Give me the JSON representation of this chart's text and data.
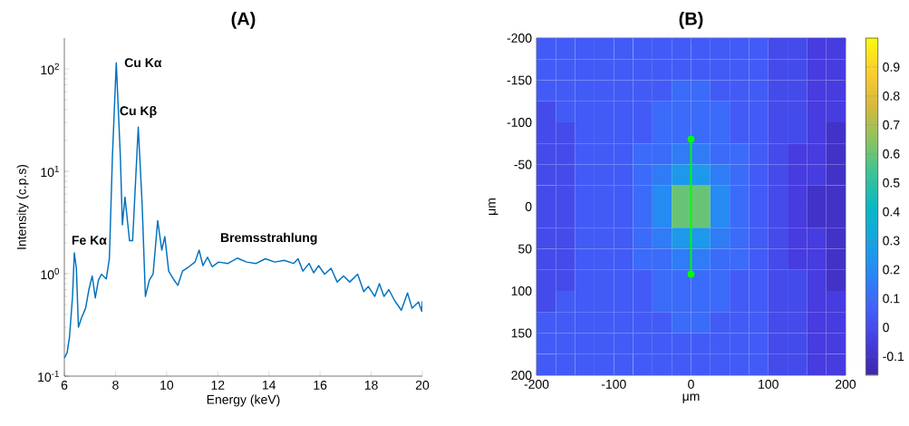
{
  "chart_data": [
    {
      "type": "line",
      "title": "(A)",
      "xlabel": "Energy (keV)",
      "ylabel": "Intensity (c.p.s)",
      "log": "y",
      "color": "#0072bd",
      "xlim": [
        6,
        20
      ],
      "ylim": [
        0.1,
        200
      ],
      "xticks": [
        6,
        8,
        10,
        12,
        14,
        16,
        18,
        20
      ],
      "yticks": [
        {
          "value": 0.1,
          "label": "10$^{-1}$"
        },
        {
          "value": 1,
          "label": "10$^{0}$"
        },
        {
          "value": 10,
          "label": "10$^{1}$"
        },
        {
          "value": 100,
          "label": "10$^{2}$"
        }
      ],
      "x": [
        6.0,
        6.11,
        6.2,
        6.32,
        6.39,
        6.47,
        6.55,
        6.67,
        6.83,
        6.96,
        7.09,
        7.21,
        7.33,
        7.45,
        7.64,
        7.76,
        7.88,
        8.03,
        8.19,
        8.27,
        8.37,
        8.55,
        8.67,
        8.89,
        9.04,
        9.17,
        9.32,
        9.47,
        9.65,
        9.81,
        9.93,
        10.08,
        10.26,
        10.44,
        10.62,
        10.87,
        11.11,
        11.27,
        11.42,
        11.6,
        11.78,
        12.03,
        12.4,
        12.76,
        13.13,
        13.5,
        13.86,
        14.23,
        14.6,
        14.96,
        15.14,
        15.33,
        15.57,
        15.75,
        15.94,
        16.18,
        16.43,
        16.67,
        16.92,
        17.16,
        17.47,
        17.71,
        17.89,
        18.14,
        18.32,
        18.5,
        18.69,
        18.93,
        19.18,
        19.42,
        19.6,
        19.85,
        19.98,
        20.0
      ],
      "values": [
        0.15,
        0.17,
        0.24,
        0.6,
        1.6,
        1.13,
        0.3,
        0.37,
        0.46,
        0.7,
        0.95,
        0.58,
        0.86,
        0.99,
        0.89,
        1.4,
        14,
        115,
        14,
        3.0,
        5.6,
        2.1,
        2.1,
        27,
        4.9,
        0.6,
        0.86,
        0.99,
        3.3,
        1.7,
        2.3,
        1.06,
        0.89,
        0.77,
        1.06,
        1.17,
        1.3,
        1.7,
        1.2,
        1.45,
        1.17,
        1.3,
        1.26,
        1.42,
        1.3,
        1.26,
        1.4,
        1.3,
        1.35,
        1.26,
        1.4,
        1.06,
        1.26,
        1.02,
        1.2,
        0.99,
        1.13,
        0.83,
        0.95,
        0.83,
        0.99,
        0.67,
        0.75,
        0.6,
        0.8,
        0.6,
        0.7,
        0.54,
        0.44,
        0.65,
        0.46,
        0.53,
        0.43,
        0.54
      ],
      "annotations": [
        {
          "text": "Fe Kα",
          "x": 6.39,
          "y": 1.6
        },
        {
          "text": "Cu Kα",
          "x": 8.03,
          "y": 115
        },
        {
          "text": "Cu Kβ",
          "x": 8.89,
          "y": 27
        },
        {
          "text": "Bremsstrahlung",
          "x": 14,
          "y": 1.4
        }
      ]
    },
    {
      "type": "heatmap",
      "title": "(B)",
      "xlabel": "μm",
      "ylabel": "μm",
      "marker": "circle",
      "xlim": [
        -200,
        200
      ],
      "ylim": [
        200,
        -200
      ],
      "xticks": [
        -200,
        -100,
        0,
        100,
        200
      ],
      "yticks": [
        -200,
        -150,
        -100,
        -50,
        0,
        50,
        100,
        150,
        200
      ],
      "clim": [
        -0.165,
        1
      ],
      "cticks": [
        -0.1,
        0,
        0.1,
        0.2,
        0.3,
        0.4,
        0.5,
        0.6,
        0.7,
        0.8,
        0.9
      ],
      "x": [
        -187.5,
        -162.5,
        -137.5,
        -112.5,
        -87.5,
        -62.5,
        -37.5,
        -12.5,
        12.5,
        37.5,
        62.5,
        87.5,
        112.5,
        137.5,
        162.5,
        187.5
      ],
      "y": [
        -187.5,
        -162.5,
        -137.5,
        -112.5,
        -87.5,
        -62.5,
        -37.5,
        -12.5,
        12.5,
        37.5,
        62.5,
        87.5,
        112.5,
        137.5,
        162.5,
        187.5
      ],
      "cells": [
        [
          0.05,
          0.05,
          0.05,
          0.05,
          0.05,
          0.05,
          0.05,
          0.05,
          0.05,
          0.05,
          0.05,
          0.05,
          0,
          0,
          -0.05,
          -0.05
        ],
        [
          0.05,
          0.05,
          0.05,
          0.05,
          0.05,
          0.05,
          0.05,
          0.05,
          0.05,
          0.05,
          0.05,
          0.05,
          0,
          0,
          -0.05,
          -0.05
        ],
        [
          0.05,
          0.05,
          0.05,
          0.05,
          0.05,
          0.05,
          0.05,
          0.1,
          0.1,
          0.05,
          0.05,
          0.05,
          0,
          0,
          -0.05,
          -0.05
        ],
        [
          0,
          0.05,
          0.05,
          0.05,
          0.05,
          0.05,
          0.1,
          0.1,
          0.1,
          0.1,
          0.05,
          0.05,
          0,
          0,
          -0.05,
          -0.05
        ],
        [
          0,
          0,
          0.05,
          0.05,
          0.05,
          0.05,
          0.1,
          0.1,
          0.1,
          0.1,
          0.05,
          0.05,
          0,
          0,
          -0.05,
          -0.1
        ],
        [
          0,
          0,
          0.05,
          0.05,
          0.05,
          0.1,
          0.1,
          0.15,
          0.15,
          0.1,
          0.1,
          0.05,
          0,
          -0.05,
          -0.05,
          -0.1
        ],
        [
          0,
          0,
          0.05,
          0.05,
          0.05,
          0.1,
          0.15,
          0.25,
          0.25,
          0.15,
          0.1,
          0.05,
          0,
          -0.05,
          -0.05,
          -0.1
        ],
        [
          0,
          0,
          0.05,
          0.05,
          0.05,
          0.1,
          0.2,
          0.6,
          0.6,
          0.2,
          0.1,
          0.05,
          0,
          -0.05,
          -0.1,
          -0.1
        ],
        [
          0,
          0,
          0.05,
          0.05,
          0.05,
          0.1,
          0.2,
          0.6,
          0.6,
          0.2,
          0.1,
          0.05,
          0,
          -0.05,
          -0.1,
          -0.1
        ],
        [
          0,
          0,
          0.05,
          0.05,
          0.05,
          0.1,
          0.15,
          0.25,
          0.25,
          0.15,
          0.1,
          0.05,
          0,
          -0.05,
          -0.05,
          -0.1
        ],
        [
          0,
          0,
          0.05,
          0.05,
          0.05,
          0.1,
          0.1,
          0.15,
          0.15,
          0.1,
          0.1,
          0.05,
          0,
          -0.05,
          -0.05,
          -0.1
        ],
        [
          0,
          0,
          0.05,
          0.05,
          0.05,
          0.05,
          0.1,
          0.1,
          0.1,
          0.1,
          0.05,
          0.05,
          0,
          0,
          -0.05,
          -0.1
        ],
        [
          0,
          0.05,
          0.05,
          0.05,
          0.05,
          0.05,
          0.1,
          0.1,
          0.1,
          0.1,
          0.05,
          0.05,
          0,
          0,
          -0.05,
          -0.05
        ],
        [
          0.05,
          0.05,
          0.05,
          0.05,
          0.05,
          0.05,
          0.05,
          0.1,
          0.1,
          0.05,
          0.05,
          0.05,
          0,
          0,
          -0.05,
          -0.05
        ],
        [
          0.05,
          0.05,
          0.05,
          0.05,
          0.05,
          0.05,
          0.05,
          0.05,
          0.05,
          0.05,
          0.05,
          0.05,
          0,
          0,
          -0.05,
          -0.05
        ],
        [
          0.05,
          0.05,
          0.05,
          0.05,
          0.05,
          0.05,
          0.05,
          0.05,
          0.05,
          0.05,
          0.05,
          0.05,
          0,
          0,
          -0.05,
          -0.05
        ]
      ],
      "series": [
        {
          "type": "line",
          "color": "#00ff00",
          "x": [
            0,
            0
          ],
          "values": [
            -80,
            80
          ]
        }
      ]
    }
  ]
}
